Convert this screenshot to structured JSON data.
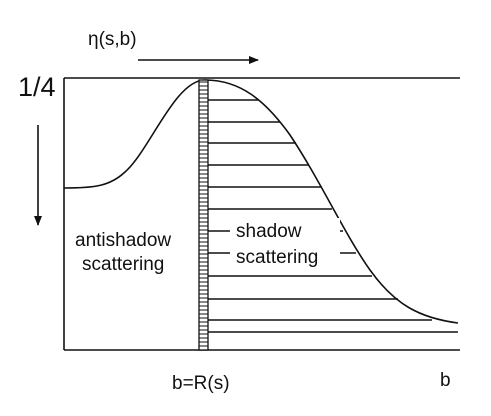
{
  "labels": {
    "eta": "η(s,b)",
    "quarter": "1/4",
    "antishadow": [
      "antishadow",
      "scattering"
    ],
    "shadow": [
      "shadow",
      "scattering"
    ],
    "radius": "b=R(s)",
    "b_axis": "b"
  }
}
